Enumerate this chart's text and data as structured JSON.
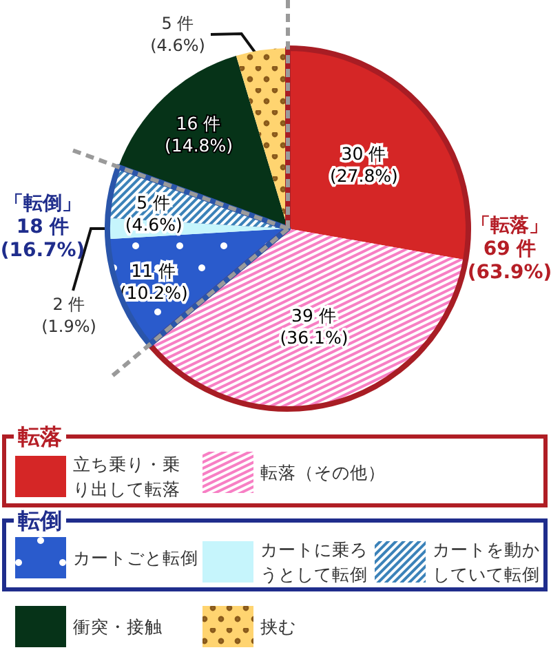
{
  "chart_data": {
    "type": "pie",
    "categories": [
      "立ち乗り・乗り出して転落",
      "転落（その他）",
      "カートごと転倒",
      "カートに乗ろうとして転倒",
      "カートを動かしていて転倒",
      "衝突・接触",
      "挟む"
    ],
    "values": [
      30,
      39,
      11,
      2,
      5,
      16,
      5
    ],
    "colors": [
      "#d52626",
      "#f77fc4",
      "#2a5bcc",
      "#c6f5fc",
      "#3b82b9",
      "#063318",
      "#ffd470"
    ],
    "value_labels": [
      "30 件\n(27.8%)",
      "39 件\n(36.1%)",
      "11 件\n(10.2%)",
      "2 件\n(1.9%)",
      "5 件\n(4.6%)",
      "16 件\n(14.8%)",
      "5 件\n(4.6%)"
    ],
    "annotations": [
      "「転落」\n69 件\n(63.9%)",
      "「転倒」\n18 件\n(16.7%)",
      "転落",
      "転倒"
    ],
    "legend": "bottom"
  }
}
